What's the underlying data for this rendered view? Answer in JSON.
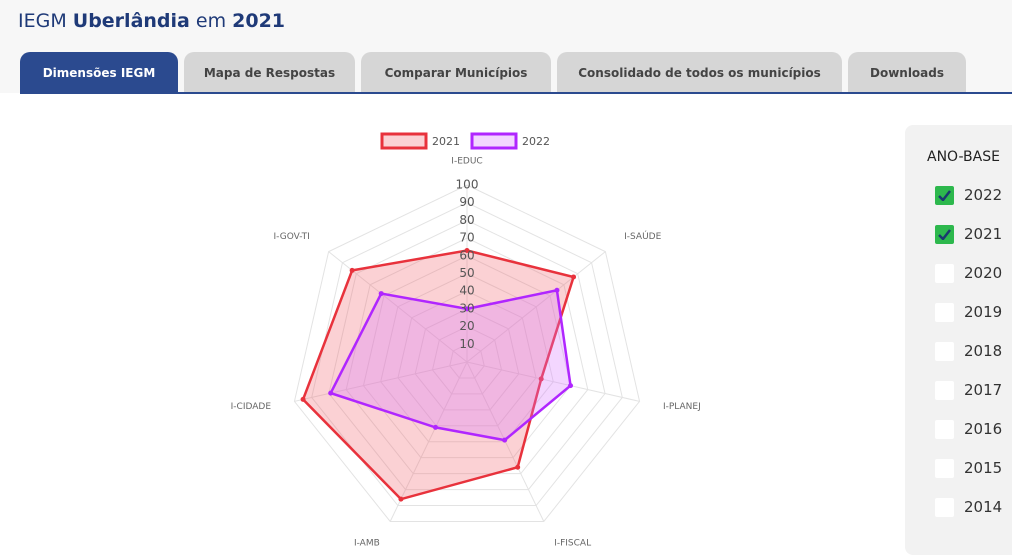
{
  "header": {
    "title": [
      {
        "text": "IEGM ",
        "bold": false
      },
      {
        "text": "Uberlândia",
        "bold": true
      },
      {
        "text": " em ",
        "bold": false
      },
      {
        "text": "2021",
        "bold": true
      }
    ]
  },
  "tabs": [
    {
      "label": "Dimensões IEGM",
      "active": true
    },
    {
      "label": "Mapa de Respostas",
      "active": false
    },
    {
      "label": "Comparar Municípios",
      "active": false
    },
    {
      "label": "Consolidado de todos os municípios",
      "active": false
    },
    {
      "label": "Downloads",
      "active": false
    }
  ],
  "chart_data": {
    "type": "radar",
    "categories": [
      "I-EDUC",
      "I-SAÚDE",
      "I-PLANEJ",
      "I-FISCAL",
      "I-AMB",
      "I-CIDADE",
      "I-GOV-TI"
    ],
    "series": [
      {
        "name": "2021",
        "color": "#e8323c",
        "fill": "rgba(240,90,100,0.28)",
        "values": [
          63,
          77,
          43,
          66,
          86,
          95,
          83
        ]
      },
      {
        "name": "2022",
        "color": "#b026ff",
        "fill": "rgba(215,120,255,0.3)",
        "values": [
          30,
          65,
          60,
          49,
          41,
          79,
          62
        ]
      }
    ],
    "rlim": [
      0,
      100
    ],
    "rticks": [
      10,
      20,
      30,
      40,
      50,
      60,
      70,
      80,
      90,
      100
    ],
    "grid": true,
    "legend": "top"
  },
  "sidebar": {
    "title": "ANO-BASE",
    "years": [
      {
        "label": "2022",
        "checked": true
      },
      {
        "label": "2021",
        "checked": true
      },
      {
        "label": "2020",
        "checked": false
      },
      {
        "label": "2019",
        "checked": false
      },
      {
        "label": "2018",
        "checked": false
      },
      {
        "label": "2017",
        "checked": false
      },
      {
        "label": "2016",
        "checked": false
      },
      {
        "label": "2015",
        "checked": false
      },
      {
        "label": "2014",
        "checked": false
      }
    ]
  }
}
